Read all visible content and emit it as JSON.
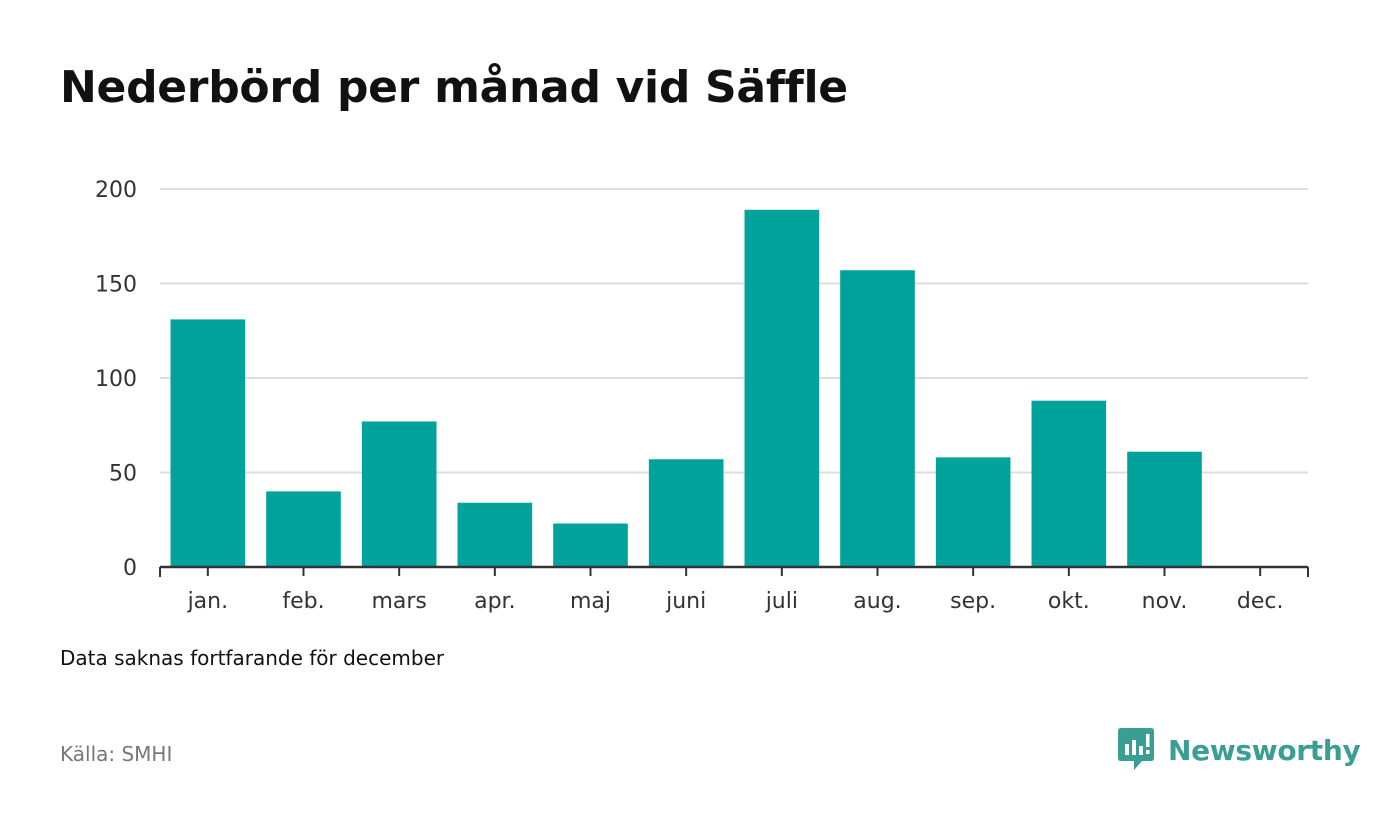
{
  "title": "Nederbörd per månad vid Säffle",
  "note": "Data saknas fortfarande för december",
  "source": "Källa: SMHI",
  "logo": {
    "text": "Newsworthy",
    "icon": "newsworthy-chart-bubble-icon"
  },
  "colors": {
    "bar": "#00a39b",
    "grid": "#dddddd",
    "axis": "#333333",
    "brand": "#3a9e94"
  },
  "chart_data": {
    "type": "bar",
    "categories": [
      "jan.",
      "feb.",
      "mars",
      "apr.",
      "maj",
      "juni",
      "juli",
      "aug.",
      "sep.",
      "okt.",
      "nov.",
      "dec."
    ],
    "values": [
      131,
      40,
      77,
      34,
      23,
      57,
      189,
      157,
      58,
      88,
      61,
      null
    ],
    "ylim": [
      0,
      200
    ],
    "yticks": [
      0,
      50,
      100,
      150,
      200
    ],
    "grid": true,
    "legend": "none",
    "xlabel": "",
    "ylabel": ""
  }
}
